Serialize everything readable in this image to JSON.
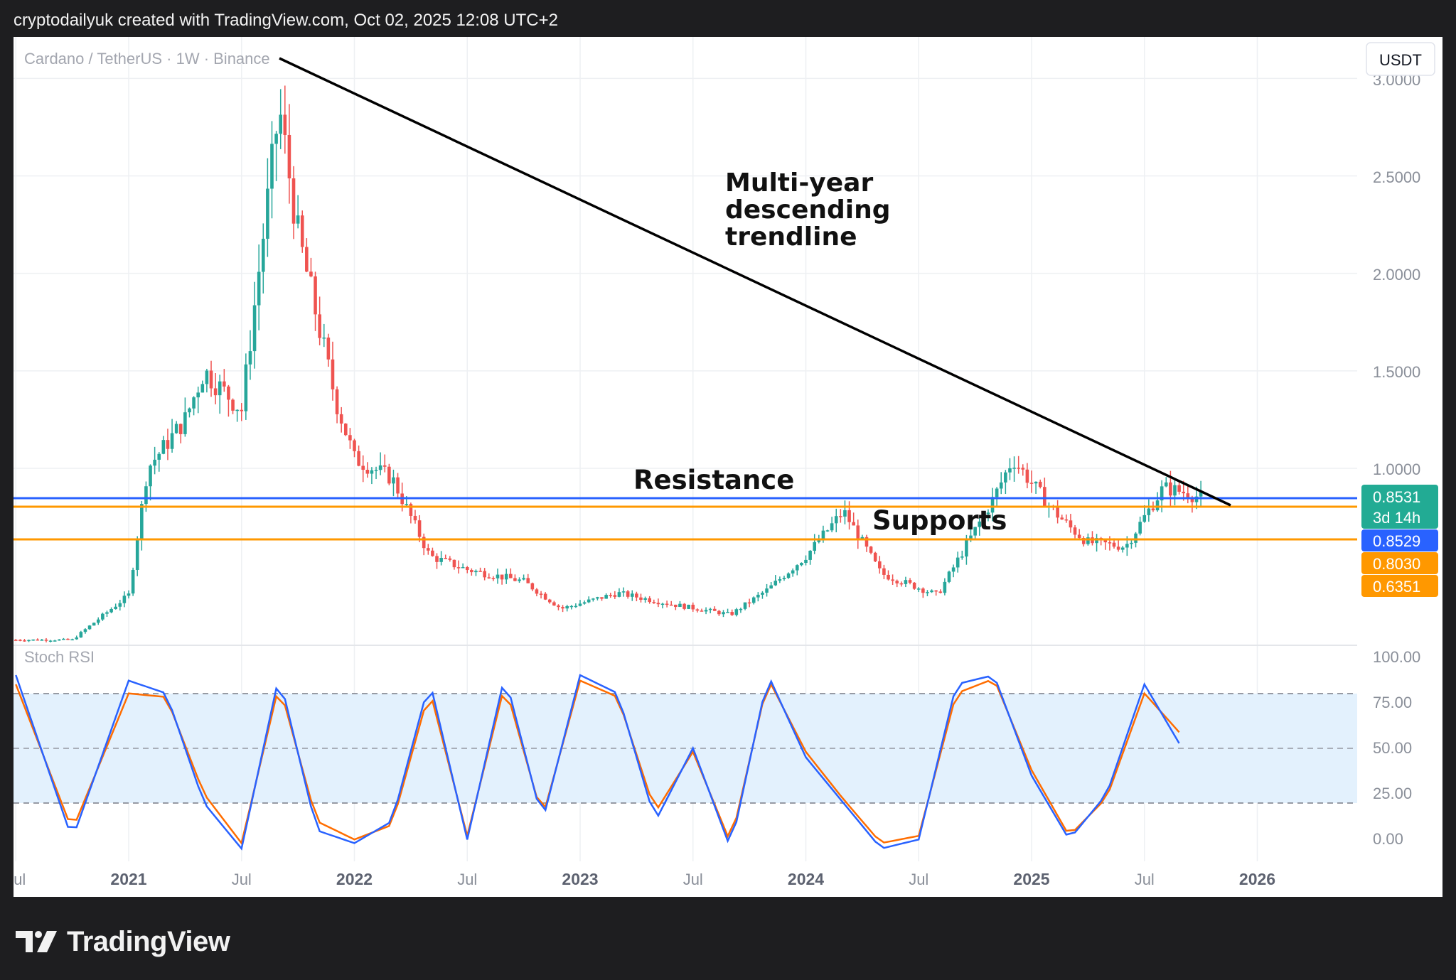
{
  "header": {
    "text": "cryptodailyuk created with TradingView.com, Oct 02, 2025 12:08 UTC+2"
  },
  "symbol": {
    "title": "Cardano / TetherUS · 1W · Binance"
  },
  "currency_button": "USDT",
  "footer": {
    "logo_text": "TradingView"
  },
  "colors": {
    "up": "#26a69a",
    "down": "#ef5350",
    "resistance": "#2962ff",
    "support": "#ff9800",
    "stoch_k": "#2962ff",
    "stoch_d": "#ff6d00",
    "band": "#e3f1fd",
    "trendline": "#000000"
  },
  "price_axis": {
    "ticks": [
      "2.5000",
      "2.0000",
      "1.5000",
      "1.0000"
    ],
    "partial_top": "3.0000"
  },
  "price_tags": {
    "last": "0.8531",
    "countdown": "3d 14h",
    "resistance": "0.8529",
    "support_upper": "0.8030",
    "support_lower": "0.6351"
  },
  "annotations": {
    "trendline_lines": [
      "Multi-year",
      "descending",
      "trendline"
    ],
    "resistance": "Resistance",
    "supports": "Supports"
  },
  "stoch_panel": {
    "title": "Stoch RSI",
    "ticks": [
      "100.00",
      "75.00",
      "50.00",
      "25.00",
      "0.00"
    ]
  },
  "time_axis": [
    {
      "label": "Jul",
      "bold": false
    },
    {
      "label": "2021",
      "bold": true
    },
    {
      "label": "Jul",
      "bold": false
    },
    {
      "label": "2022",
      "bold": true
    },
    {
      "label": "Jul",
      "bold": false
    },
    {
      "label": "2023",
      "bold": true
    },
    {
      "label": "Jul",
      "bold": false
    },
    {
      "label": "2024",
      "bold": true
    },
    {
      "label": "Jul",
      "bold": false
    },
    {
      "label": "2025",
      "bold": true
    },
    {
      "label": "Jul",
      "bold": false
    },
    {
      "label": "2026",
      "bold": true
    }
  ],
  "chart_data": [
    {
      "type": "candlestick",
      "title": "Cardano / TetherUS · 1W · Binance",
      "x": [
        "2020-07",
        "2020-10",
        "2021-01",
        "2021-02",
        "2021-04",
        "2021-05",
        "2021-07",
        "2021-09",
        "2021-10",
        "2021-12",
        "2022-01",
        "2022-03",
        "2022-05",
        "2022-07",
        "2022-10",
        "2022-12",
        "2023-03",
        "2023-06",
        "2023-09",
        "2023-11",
        "2024-01",
        "2024-03",
        "2024-05",
        "2024-08",
        "2024-11",
        "2024-12",
        "2025-02",
        "2025-03",
        "2025-04",
        "2025-06",
        "2025-08",
        "2025-09",
        "2025-10"
      ],
      "close": [
        0.12,
        0.12,
        0.35,
        1.0,
        1.25,
        1.5,
        1.3,
        2.85,
        2.2,
        1.35,
        1.05,
        0.95,
        0.55,
        0.48,
        0.42,
        0.28,
        0.36,
        0.3,
        0.25,
        0.38,
        0.55,
        0.78,
        0.46,
        0.35,
        0.85,
        1.05,
        0.8,
        0.7,
        0.62,
        0.6,
        0.9,
        0.88,
        0.85
      ],
      "ylim": [
        0.0,
        3.0
      ],
      "trendline": {
        "from": [
          "2021-09",
          3.1
        ],
        "to": [
          "2025-11",
          0.83
        ]
      },
      "horizontal_lines": [
        {
          "name": "Resistance",
          "value": 0.8529
        },
        {
          "name": "Support",
          "value": 0.803
        },
        {
          "name": "Support",
          "value": 0.6351
        }
      ]
    },
    {
      "type": "line",
      "title": "Stoch RSI",
      "x": [
        "2020-07",
        "2020-10",
        "2021-01",
        "2021-03",
        "2021-05",
        "2021-07",
        "2021-09",
        "2021-11",
        "2022-01",
        "2022-03",
        "2022-05",
        "2022-07",
        "2022-09",
        "2022-11",
        "2023-01",
        "2023-03",
        "2023-05",
        "2023-07",
        "2023-09",
        "2023-11",
        "2024-01",
        "2024-03",
        "2024-05",
        "2024-07",
        "2024-09",
        "2024-11",
        "2025-01",
        "2025-03",
        "2025-05",
        "2025-07",
        "2025-09"
      ],
      "series": [
        {
          "name": "K",
          "values": [
            100,
            10,
            97,
            90,
            30,
            5,
            100,
            15,
            8,
            20,
            97,
            10,
            100,
            20,
            100,
            90,
            20,
            60,
            5,
            100,
            55,
            30,
            5,
            10,
            95,
            100,
            45,
            10,
            35,
            95,
            60
          ]
        },
        {
          "name": "D",
          "values": [
            95,
            15,
            90,
            88,
            35,
            8,
            95,
            20,
            10,
            18,
            92,
            12,
            95,
            22,
            97,
            88,
            25,
            58,
            8,
            98,
            58,
            32,
            8,
            12,
            90,
            98,
            48,
            12,
            33,
            90,
            67
          ]
        }
      ],
      "ylim": [
        0,
        100
      ],
      "reference_lines": [
        80,
        50,
        20
      ]
    }
  ]
}
